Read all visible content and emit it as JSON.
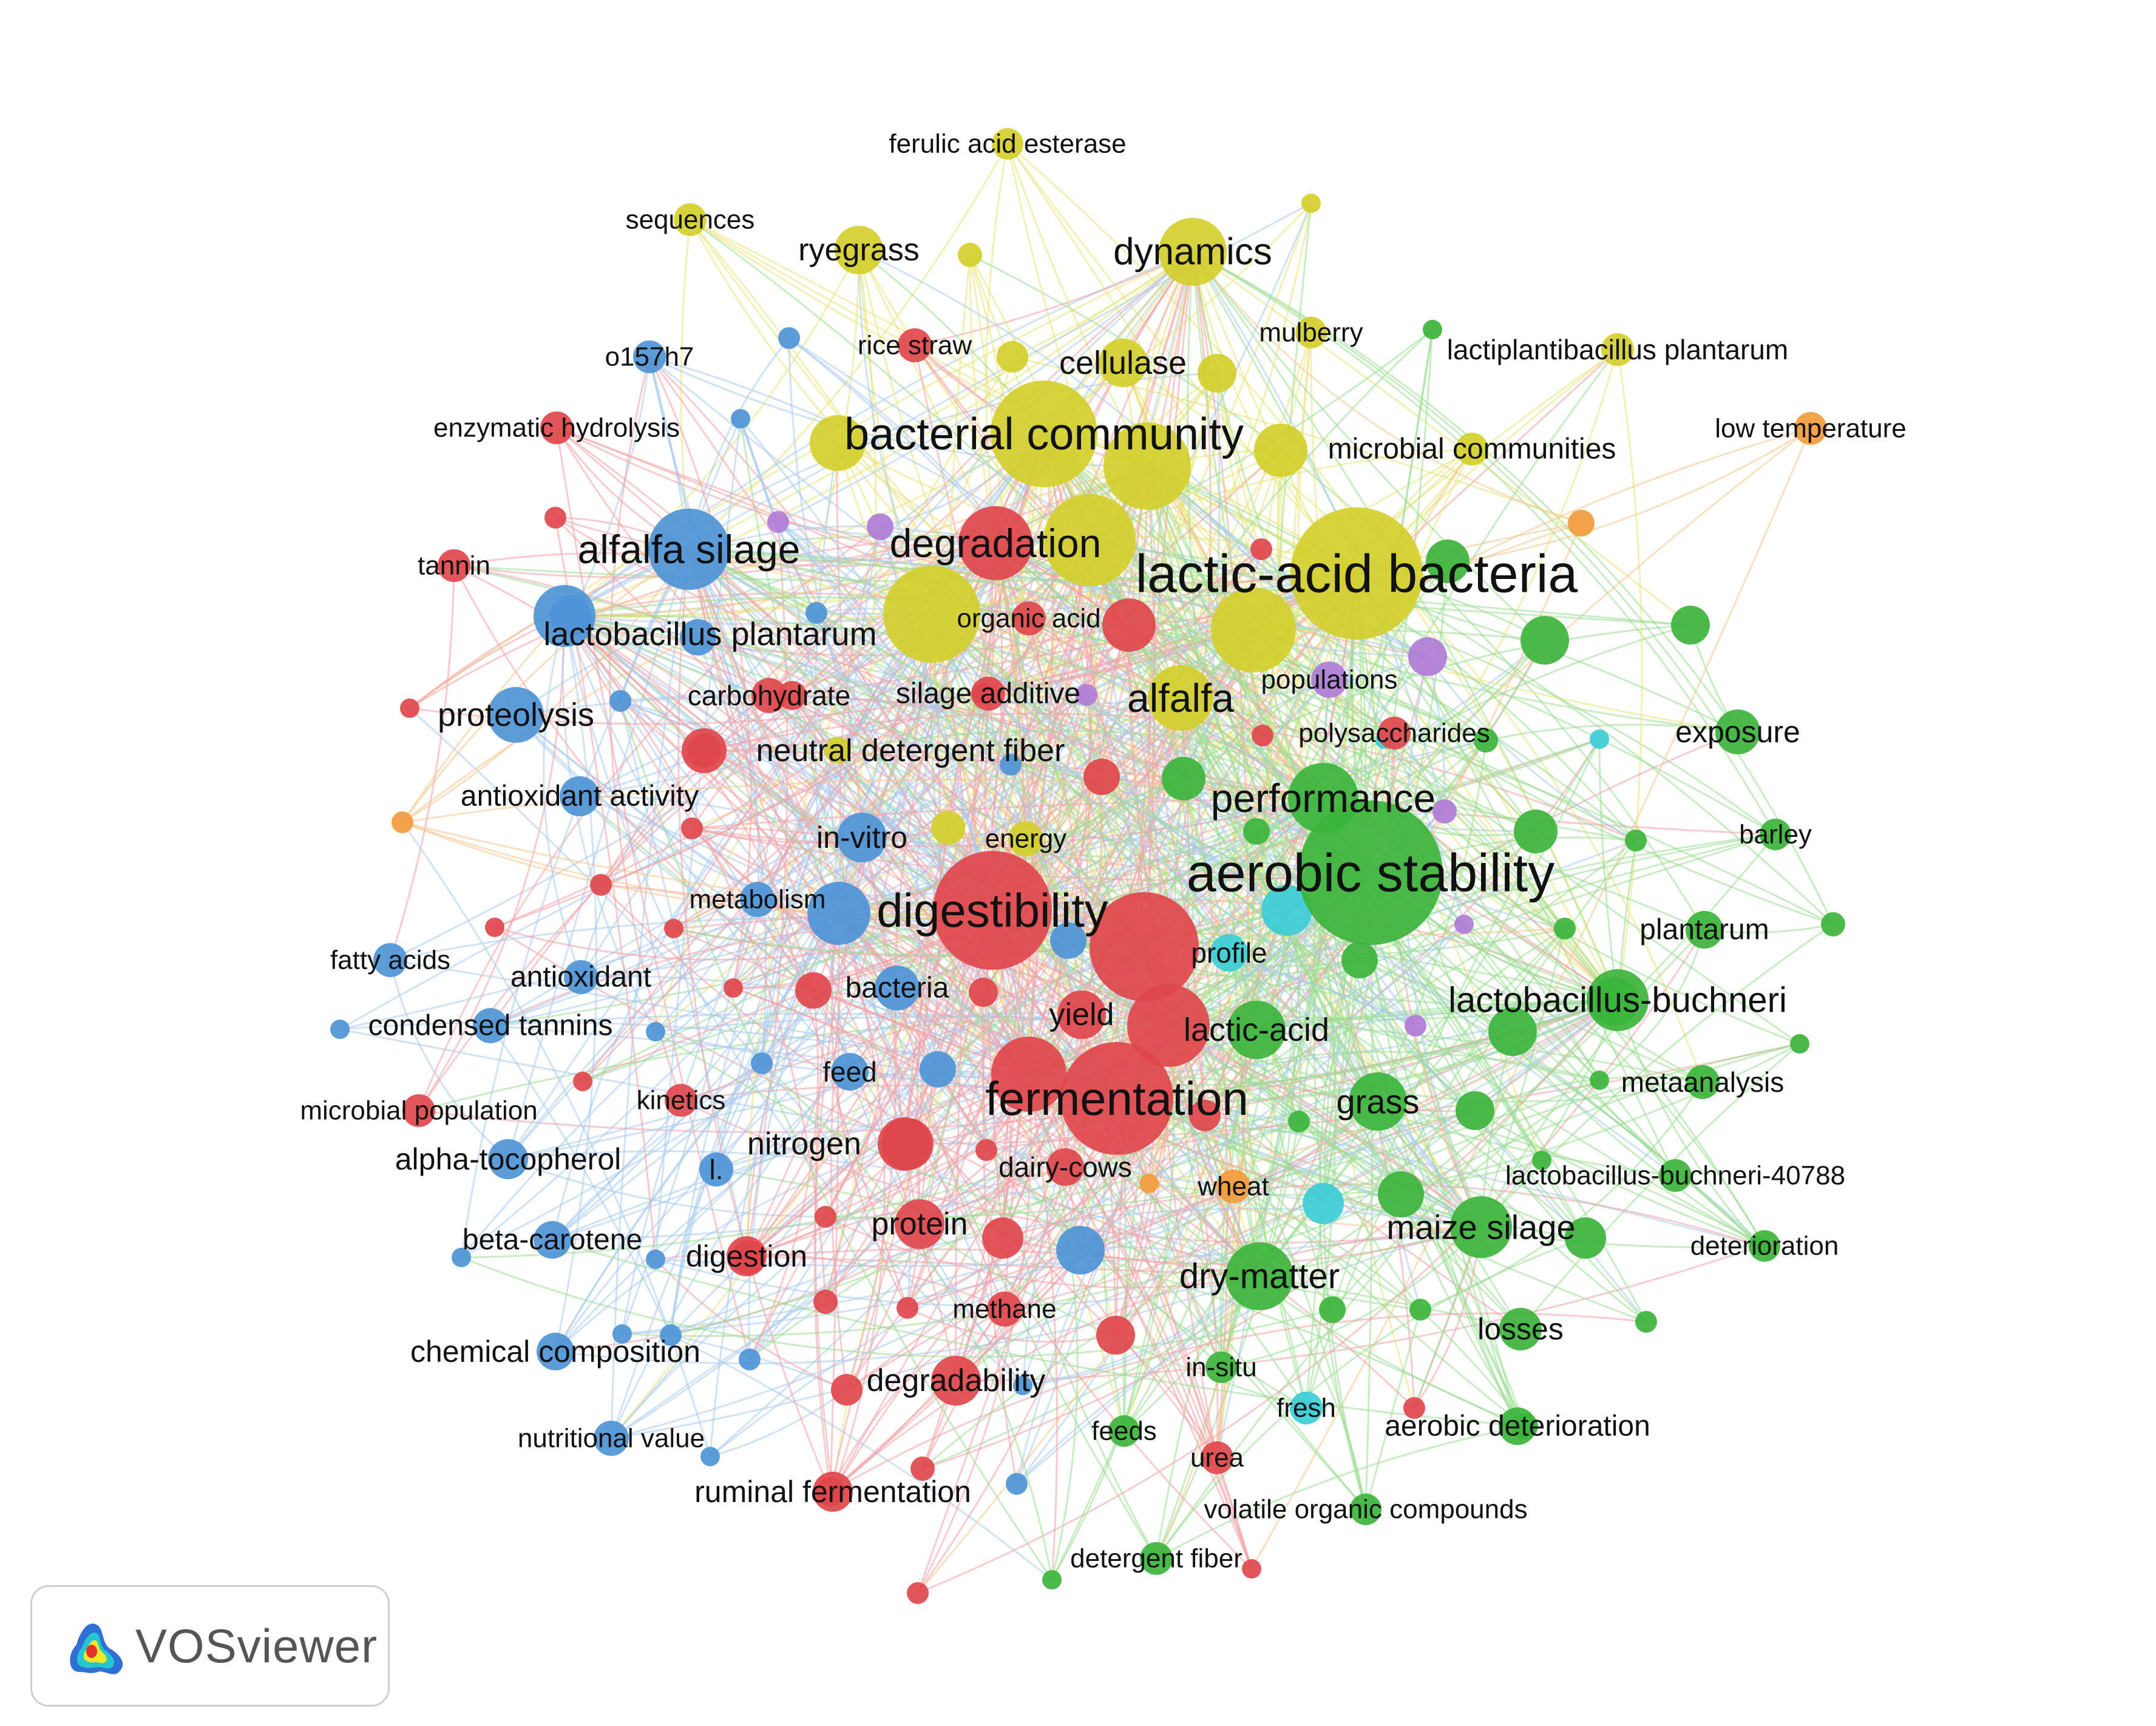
{
  "app": {
    "name": "VOSviewer"
  },
  "colors": {
    "red": "#e0474c",
    "green": "#3cb43c",
    "blue": "#4e94d6",
    "yellow": "#d2cf2c",
    "purple": "#b07cd6",
    "cyan": "#3ccdd6",
    "orange": "#f29b3c",
    "red_link": "#f3a3a5",
    "green_link": "#9bdc91",
    "blue_link": "#a8cbee",
    "yellow_link": "#e7e47a",
    "orange_link": "#f6c48e"
  },
  "network": {
    "nodes": [
      {
        "label": "aerobic stability",
        "cluster": "green",
        "weight": 10.0
      },
      {
        "label": "lactic-acid bacteria",
        "cluster": "yellow",
        "weight": 9.0
      },
      {
        "label": "digestibility",
        "cluster": "red",
        "weight": 8.0
      },
      {
        "label": "fermentation",
        "cluster": "red",
        "weight": 7.5
      },
      {
        "label": "bacterial community",
        "cluster": "yellow",
        "weight": 7.0
      },
      {
        "label": "alfalfa silage",
        "cluster": "blue",
        "weight": 5.0
      },
      {
        "label": "degradation",
        "cluster": "red",
        "weight": 4.5
      },
      {
        "label": "dynamics",
        "cluster": "yellow",
        "weight": 4.0
      },
      {
        "label": "performance",
        "cluster": "green",
        "weight": 4.2
      },
      {
        "label": "alfalfa",
        "cluster": "yellow",
        "weight": 3.8
      },
      {
        "label": "lactobacillus plantarum",
        "cluster": "blue",
        "weight": 3.5
      },
      {
        "label": "proteolysis",
        "cluster": "blue",
        "weight": 3.0
      },
      {
        "label": "lactic-acid",
        "cluster": "green",
        "weight": 3.2
      },
      {
        "label": "lactobacillus-buchneri",
        "cluster": "green",
        "weight": 3.5
      },
      {
        "label": "dry-matter",
        "cluster": "green",
        "weight": 4.0
      },
      {
        "label": "maize silage",
        "cluster": "green",
        "weight": 3.5
      },
      {
        "label": "grass",
        "cluster": "green",
        "weight": 3.2
      },
      {
        "label": "ryegrass",
        "cluster": "yellow",
        "weight": 2.5
      },
      {
        "label": "cellulase",
        "cluster": "yellow",
        "weight": 2.5
      },
      {
        "label": "neutral detergent fiber",
        "cluster": "red",
        "weight": 2.2
      },
      {
        "label": "in-vitro",
        "cluster": "blue",
        "weight": 2.6
      },
      {
        "label": "yield",
        "cluster": "red",
        "weight": 2.5
      },
      {
        "label": "protein",
        "cluster": "red",
        "weight": 2.6
      },
      {
        "label": "nitrogen",
        "cluster": "red",
        "weight": 2.8
      },
      {
        "label": "degradability",
        "cluster": "red",
        "weight": 2.6
      },
      {
        "label": "exposure",
        "cluster": "green",
        "weight": 2.2
      },
      {
        "label": "losses",
        "cluster": "green",
        "weight": 2.0
      },
      {
        "label": "aerobic deterioration",
        "cluster": "green",
        "weight": 1.6
      },
      {
        "label": "plantarum",
        "cluster": "green",
        "weight": 1.6
      },
      {
        "label": "metaanalysis",
        "cluster": "green",
        "weight": 1.3
      },
      {
        "label": "lactobacillus-buchneri-40788",
        "cluster": "green",
        "weight": 1.2
      },
      {
        "label": "deterioration",
        "cluster": "green",
        "weight": 1.1
      },
      {
        "label": "barley",
        "cluster": "green",
        "weight": 1.1
      },
      {
        "label": "volatile organic compounds",
        "cluster": "green",
        "weight": 1.1
      },
      {
        "label": "detergent fiber",
        "cluster": "green",
        "weight": 1.2
      },
      {
        "label": "in-situ",
        "cluster": "green",
        "weight": 1.1
      },
      {
        "label": "feeds",
        "cluster": "green",
        "weight": 1.1
      },
      {
        "label": "lactiplantibacillus plantarum",
        "cluster": "yellow",
        "weight": 1.2
      },
      {
        "label": "microbial communities",
        "cluster": "yellow",
        "weight": 1.2
      },
      {
        "label": "mulberry",
        "cluster": "yellow",
        "weight": 1.1
      },
      {
        "label": "ferulic acid esterase",
        "cluster": "yellow",
        "weight": 1.1
      },
      {
        "label": "sequences",
        "cluster": "yellow",
        "weight": 1.2
      },
      {
        "label": "rice straw",
        "cluster": "red",
        "weight": 1.3
      },
      {
        "label": "o157h7",
        "cluster": "blue",
        "weight": 1.2
      },
      {
        "label": "enzymatic hydrolysis",
        "cluster": "red",
        "weight": 1.2
      },
      {
        "label": "tannin",
        "cluster": "red",
        "weight": 1.2
      },
      {
        "label": "antioxidant activity",
        "cluster": "blue",
        "weight": 1.8
      },
      {
        "label": "metabolism",
        "cluster": "blue",
        "weight": 1.4
      },
      {
        "label": "fatty acids",
        "cluster": "blue",
        "weight": 1.3
      },
      {
        "label": "antioxidant",
        "cluster": "blue",
        "weight": 1.3
      },
      {
        "label": "condensed tannins",
        "cluster": "blue",
        "weight": 1.4
      },
      {
        "label": "microbial population",
        "cluster": "red",
        "weight": 1.2
      },
      {
        "label": "kinetics",
        "cluster": "red",
        "weight": 1.2
      },
      {
        "label": "alpha-tocopherol",
        "cluster": "blue",
        "weight": 1.8
      },
      {
        "label": "l.",
        "cluster": "blue",
        "weight": 1.3
      },
      {
        "label": "beta-carotene",
        "cluster": "blue",
        "weight": 1.6
      },
      {
        "label": "digestion",
        "cluster": "red",
        "weight": 1.8
      },
      {
        "label": "chemical composition",
        "cluster": "blue",
        "weight": 1.6
      },
      {
        "label": "nutritional value",
        "cluster": "blue",
        "weight": 1.4
      },
      {
        "label": "ruminal fermentation",
        "cluster": "red",
        "weight": 1.8
      },
      {
        "label": "methane",
        "cluster": "red",
        "weight": 1.4
      },
      {
        "label": "dairy-cows",
        "cluster": "red",
        "weight": 1.6
      },
      {
        "label": "wheat",
        "cluster": "orange",
        "weight": 1.3
      },
      {
        "label": "fresh",
        "cluster": "cyan",
        "weight": 1.2
      },
      {
        "label": "urea",
        "cluster": "red",
        "weight": 1.2
      },
      {
        "label": "bacteria",
        "cluster": "blue",
        "weight": 2.2
      },
      {
        "label": "feed",
        "cluster": "blue",
        "weight": 1.6
      },
      {
        "label": "energy",
        "cluster": "yellow",
        "weight": 1.4
      },
      {
        "label": "profile",
        "cluster": "cyan",
        "weight": 1.6
      },
      {
        "label": "organic acid",
        "cluster": "red",
        "weight": 1.3
      },
      {
        "label": "carbohydrate",
        "cluster": "red",
        "weight": 1.4
      },
      {
        "label": "silage additive",
        "cluster": "red",
        "weight": 1.3
      },
      {
        "label": "populations",
        "cluster": "purple",
        "weight": 1.5
      },
      {
        "label": "polysaccharides",
        "cluster": "red",
        "weight": 1.2
      },
      {
        "label": "low temperature",
        "cluster": "orange",
        "weight": 1.2
      }
    ]
  }
}
